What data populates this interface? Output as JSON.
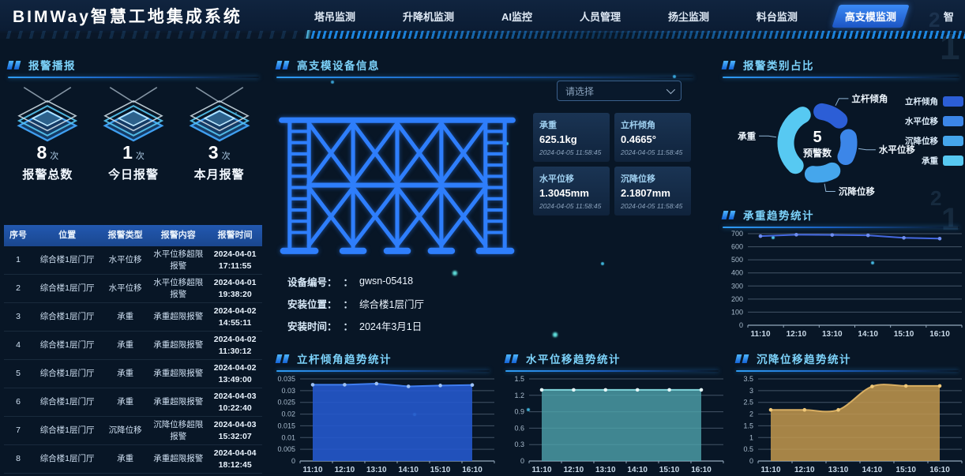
{
  "header": {
    "title": "BIMWay智慧工地集成系统",
    "tabs": [
      {
        "label": "塔吊监测",
        "active": false
      },
      {
        "label": "升降机监测",
        "active": false
      },
      {
        "label": "AI监控",
        "active": false
      },
      {
        "label": "人员管理",
        "active": false
      },
      {
        "label": "扬尘监测",
        "active": false
      },
      {
        "label": "料台监测",
        "active": false
      },
      {
        "label": "高支模监测",
        "active": true
      },
      {
        "label": "智",
        "active": false
      }
    ]
  },
  "alarm_panel": {
    "title": "报警播报",
    "stats": [
      {
        "value": "8",
        "unit": "次",
        "label": "报警总数"
      },
      {
        "value": "1",
        "unit": "次",
        "label": "今日报警"
      },
      {
        "value": "3",
        "unit": "次",
        "label": "本月报警"
      }
    ],
    "table": {
      "columns": [
        "序号",
        "位置",
        "报警类型",
        "报警内容",
        "报警时间"
      ],
      "rows": [
        [
          "1",
          "综合楼1层门厅",
          "水平位移",
          "水平位移超限报警",
          "2024-04-01 17:11:55"
        ],
        [
          "2",
          "综合楼1层门厅",
          "水平位移",
          "水平位移超限报警",
          "2024-04-01 19:38:20"
        ],
        [
          "3",
          "综合楼1层门厅",
          "承重",
          "承重超限报警",
          "2024-04-02 14:55:11"
        ],
        [
          "4",
          "综合楼1层门厅",
          "承重",
          "承重超限报警",
          "2024-04-02 11:30:12"
        ],
        [
          "5",
          "综合楼1层门厅",
          "承重",
          "承重超限报警",
          "2024-04-02 13:49:00"
        ],
        [
          "6",
          "综合楼1层门厅",
          "承重",
          "承重超限报警",
          "2024-04-03 10:22:40"
        ],
        [
          "7",
          "综合楼1层门厅",
          "沉降位移",
          "沉降位移超限报警",
          "2024-04-03 15:32:07"
        ],
        [
          "8",
          "综合楼1层门厅",
          "承重",
          "承重超限报警",
          "2024-04-04 18:12:45"
        ]
      ]
    }
  },
  "device_panel": {
    "title": "高支模设备信息",
    "select_placeholder": "请选择",
    "metrics": [
      {
        "label": "承重",
        "value": "625.1kg",
        "time": "2024-04-05 11:58:45"
      },
      {
        "label": "立杆倾角",
        "value": "0.4665°",
        "time": "2024-04-05 11:58:45"
      },
      {
        "label": "水平位移",
        "value": "1.3045mm",
        "time": "2024-04-05 11:58:45"
      },
      {
        "label": "沉降位移",
        "value": "2.1807mm",
        "time": "2024-04-05 11:58:45"
      }
    ],
    "info": [
      {
        "label": "设备编号：",
        "sep": "：",
        "value": "gwsn-05418"
      },
      {
        "label": "安装位置：",
        "sep": "：",
        "value": "综合楼1层门厅"
      },
      {
        "label": "安装时间：",
        "sep": "：",
        "value": "2024年3月1日"
      }
    ]
  },
  "decor": {
    "digits": [
      "2",
      "1",
      "2",
      "1"
    ]
  },
  "chart_data": [
    {
      "id": "alarm-donut",
      "type": "pie",
      "title": "报警类别占比",
      "center_value": "5",
      "center_label": "预警数",
      "legend_position": "right",
      "slices": [
        {
          "label": "立杆倾角",
          "value": 1,
          "color": "#2c5ed6",
          "label_side": "right"
        },
        {
          "label": "水平位移",
          "value": 1,
          "color": "#3c86e8",
          "label_side": "right"
        },
        {
          "label": "沉降位移",
          "value": 1,
          "color": "#45a6ec",
          "label_side": "right"
        },
        {
          "label": "承重",
          "value": 2,
          "color": "#57c9f2",
          "label_side": "left"
        }
      ]
    },
    {
      "id": "load-trend",
      "type": "line",
      "title": "承重趋势统计",
      "x": [
        "11:10",
        "12:10",
        "13:10",
        "14:10",
        "15:10",
        "16:10"
      ],
      "values": [
        681,
        692,
        690,
        687,
        668,
        662
      ],
      "ylim": [
        0,
        700
      ],
      "ytick_step": 100,
      "grid": true,
      "color": "#4468e0",
      "dot_color": "#6f8ef0"
    },
    {
      "id": "tilt-trend",
      "type": "area",
      "title": "立杆倾角趋势统计",
      "x": [
        "11:10",
        "12:10",
        "13:10",
        "14:10",
        "15:10",
        "16:10"
      ],
      "values": [
        0.0325,
        0.0325,
        0.033,
        0.0318,
        0.0322,
        0.0324
      ],
      "ylim": [
        0,
        0.035
      ],
      "ytick_step": 0.005,
      "grid": true,
      "color": "#3f7df0",
      "fill_color": "#2558cc",
      "fill_opacity": 0.9,
      "dot_color": "#9ec2f5"
    },
    {
      "id": "horiz-trend",
      "type": "area",
      "title": "水平位移趋势统计",
      "x": [
        "11:10",
        "12:10",
        "13:10",
        "14:10",
        "15:10",
        "16:10"
      ],
      "values": [
        1.3,
        1.3,
        1.3,
        1.3,
        1.3,
        1.3
      ],
      "ylim": [
        0,
        1.5
      ],
      "ytick_step": 0.3,
      "grid": true,
      "color": "#7fd4da",
      "fill_color": "#4fa3ad",
      "fill_opacity": 0.8,
      "dot_color": "#e6f7f8"
    },
    {
      "id": "settle-trend",
      "type": "area",
      "title": "沉降位移趋势统计",
      "x": [
        "11:10",
        "12:10",
        "13:10",
        "14:10",
        "15:10",
        "16:10"
      ],
      "values": [
        2.18,
        2.18,
        2.18,
        3.18,
        3.2,
        3.2
      ],
      "ylim": [
        0,
        3.5
      ],
      "ytick_step": 0.5,
      "grid": true,
      "smooth": true,
      "color": "#d8ae62",
      "fill_color": "#c2984e",
      "fill_opacity": 0.85,
      "dot_color": "#f0c878"
    }
  ]
}
